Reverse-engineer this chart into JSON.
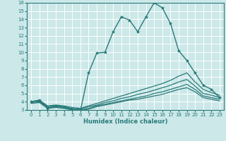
{
  "xlabel": "Humidex (Indice chaleur)",
  "bg_color": "#cce8e8",
  "grid_color": "#ffffff",
  "line_color": "#2a7a7a",
  "xlim": [
    -0.5,
    23.5
  ],
  "ylim": [
    3,
    16
  ],
  "xticks": [
    0,
    1,
    2,
    3,
    4,
    5,
    6,
    7,
    8,
    9,
    10,
    11,
    12,
    13,
    14,
    15,
    16,
    17,
    18,
    19,
    20,
    21,
    22,
    23
  ],
  "yticks": [
    3,
    4,
    5,
    6,
    7,
    8,
    9,
    10,
    11,
    12,
    13,
    14,
    15,
    16
  ],
  "series": [
    {
      "x": [
        0,
        1,
        2,
        3,
        4,
        5,
        6,
        7,
        8,
        9,
        10,
        11,
        12,
        13,
        14,
        15,
        16,
        17,
        18,
        19,
        20,
        21,
        22,
        23
      ],
      "y": [
        4.0,
        4.2,
        3.2,
        3.5,
        3.3,
        3.0,
        2.9,
        7.5,
        9.9,
        10.0,
        12.5,
        14.3,
        13.9,
        12.5,
        14.3,
        16.0,
        15.4,
        13.5,
        10.2,
        9.0,
        7.5,
        6.0,
        5.5,
        4.5
      ],
      "marker": true,
      "lw": 1.0
    },
    {
      "x": [
        0,
        1,
        2,
        3,
        4,
        5,
        6,
        7,
        8,
        9,
        10,
        11,
        12,
        13,
        14,
        15,
        16,
        17,
        18,
        19,
        20,
        21,
        22,
        23
      ],
      "y": [
        4.0,
        4.2,
        3.5,
        3.6,
        3.5,
        3.3,
        3.2,
        3.5,
        3.8,
        4.1,
        4.4,
        4.7,
        5.0,
        5.3,
        5.6,
        5.9,
        6.2,
        6.6,
        7.1,
        7.5,
        6.4,
        5.5,
        5.1,
        4.8
      ],
      "marker": false,
      "lw": 0.9
    },
    {
      "x": [
        0,
        1,
        2,
        3,
        4,
        5,
        6,
        7,
        8,
        9,
        10,
        11,
        12,
        13,
        14,
        15,
        16,
        17,
        18,
        19,
        20,
        21,
        22,
        23
      ],
      "y": [
        4.0,
        4.1,
        3.4,
        3.5,
        3.4,
        3.2,
        3.1,
        3.4,
        3.6,
        3.9,
        4.1,
        4.4,
        4.6,
        4.9,
        5.1,
        5.4,
        5.7,
        6.0,
        6.4,
        6.7,
        5.9,
        5.0,
        4.8,
        4.5
      ],
      "marker": false,
      "lw": 0.9
    },
    {
      "x": [
        0,
        1,
        2,
        3,
        4,
        5,
        6,
        7,
        8,
        9,
        10,
        11,
        12,
        13,
        14,
        15,
        16,
        17,
        18,
        19,
        20,
        21,
        22,
        23
      ],
      "y": [
        3.9,
        4.0,
        3.3,
        3.4,
        3.3,
        3.1,
        3.0,
        3.2,
        3.5,
        3.7,
        3.9,
        4.1,
        4.3,
        4.5,
        4.7,
        5.0,
        5.2,
        5.5,
        5.8,
        6.1,
        5.5,
        4.7,
        4.5,
        4.3
      ],
      "marker": false,
      "lw": 0.9
    },
    {
      "x": [
        0,
        1,
        2,
        3,
        4,
        5,
        6,
        7,
        8,
        9,
        10,
        11,
        12,
        13,
        14,
        15,
        16,
        17,
        18,
        19,
        20,
        21,
        22,
        23
      ],
      "y": [
        3.8,
        3.9,
        3.2,
        3.3,
        3.2,
        3.0,
        2.9,
        3.1,
        3.4,
        3.6,
        3.8,
        4.0,
        4.2,
        4.3,
        4.5,
        4.7,
        4.9,
        5.2,
        5.5,
        5.7,
        5.2,
        4.5,
        4.3,
        4.1
      ],
      "marker": false,
      "lw": 0.9
    }
  ]
}
